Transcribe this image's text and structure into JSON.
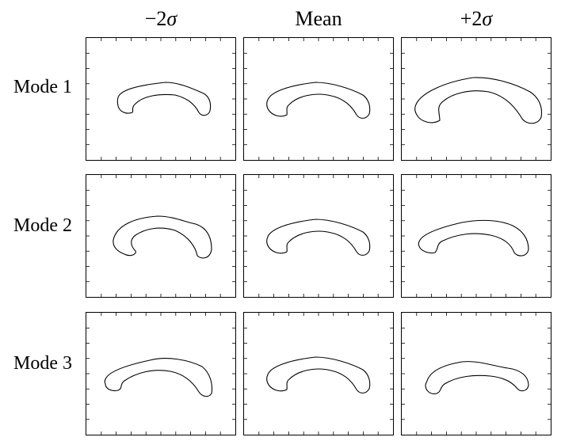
{
  "columns": [
    {
      "key": "minus",
      "label_prefix": "−2",
      "label_symbol": "σ"
    },
    {
      "key": "mean",
      "label_prefix": "Mean",
      "label_symbol": ""
    },
    {
      "key": "plus",
      "label_prefix": "+2",
      "label_symbol": "σ"
    }
  ],
  "rows": [
    {
      "label": "Mode 1"
    },
    {
      "label": "Mode 2"
    },
    {
      "label": "Mode 3"
    }
  ],
  "colors": {
    "stroke": "#000000",
    "background": "#ffffff"
  }
}
